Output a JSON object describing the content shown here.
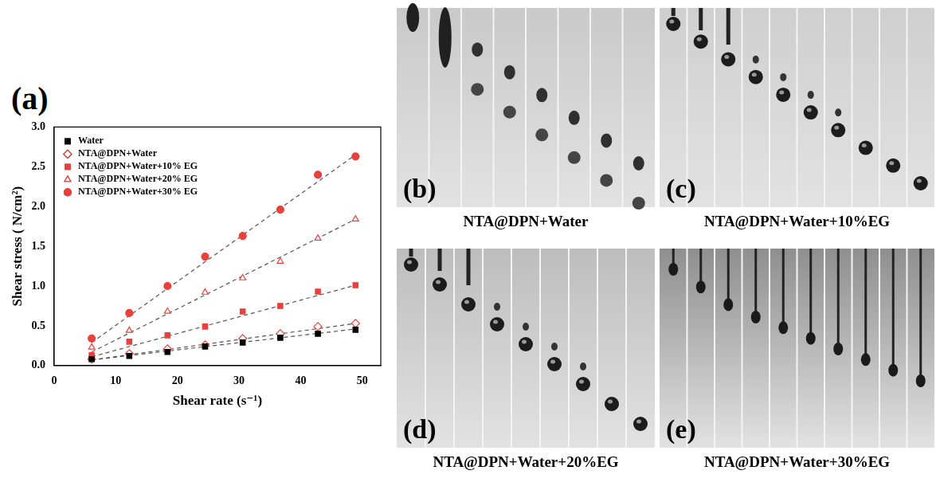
{
  "chart_data": {
    "type": "scatter",
    "panel": "(a)",
    "x_label": "Shear rate (s⁻¹)",
    "y_label": "Shear stress ( N/cm²)",
    "xlim": [
      0,
      53
    ],
    "xticks": [
      0,
      10,
      20,
      30,
      40,
      50
    ],
    "ylim": [
      0,
      3
    ],
    "yticks": [
      {
        "value": 0,
        "label": "0.0"
      },
      {
        "value": 0.5,
        "label": "0.5"
      },
      {
        "value": 1,
        "label": "1.0"
      },
      {
        "value": 1.5,
        "label": "1.5"
      },
      {
        "value": 2,
        "label": "2.0"
      },
      {
        "value": 2.5,
        "label": "2.5"
      },
      {
        "value": 3,
        "label": "3.0"
      }
    ],
    "grid": false,
    "legend": "upper left",
    "x": [
      6.1,
      12.2,
      18.4,
      24.5,
      30.6,
      36.7,
      42.8,
      48.9
    ],
    "series": [
      {
        "name": "Water",
        "color": "#000000",
        "marker": "square",
        "values": [
          0.08,
          0.12,
          0.17,
          0.24,
          0.29,
          0.35,
          0.4,
          0.45
        ],
        "trend": {
          "x": [
            6.1,
            48.9
          ],
          "values": [
            0.07,
            0.46
          ],
          "line_style": "dashed"
        }
      },
      {
        "name": "NTA@DPN+Water",
        "color": "#e8413c",
        "marker": "open diamond",
        "values": [
          0.08,
          0.15,
          0.21,
          0.26,
          0.34,
          0.4,
          0.49,
          0.53
        ],
        "trend": {
          "x": [
            6.1,
            48.9
          ],
          "values": [
            0.07,
            0.53
          ],
          "line_style": "dashed"
        }
      },
      {
        "name": "NTA@DPN+Water+10% EG",
        "color": "#e8413c",
        "marker": "square",
        "values": [
          0.13,
          0.3,
          0.38,
          0.49,
          0.68,
          0.75,
          0.93,
          1.01
        ],
        "trend": {
          "x": [
            6.1,
            48.9
          ],
          "values": [
            0.11,
            1.01
          ],
          "line_style": "dashed"
        }
      },
      {
        "name": "NTA@DPN+Water+20% EG",
        "color": "#e8413c",
        "marker": "open triangle",
        "values": [
          0.23,
          0.44,
          0.68,
          0.92,
          1.1,
          1.31,
          1.6,
          1.84
        ],
        "trend": {
          "x": [
            6.1,
            48.9
          ],
          "values": [
            0.17,
            1.84
          ],
          "line_style": "dashed"
        }
      },
      {
        "name": "NTA@DPN+Water+30% EG",
        "color": "#e8413c",
        "marker": "circle",
        "values": [
          0.34,
          0.66,
          1.0,
          1.37,
          1.63,
          1.96,
          2.4,
          2.63
        ],
        "trend": {
          "x": [
            6.1,
            48.9
          ],
          "values": [
            0.29,
            2.65
          ],
          "line_style": "dashed"
        }
      }
    ]
  },
  "panels": [
    {
      "letter": "(b)",
      "caption": "NTA@DPN+Water"
    },
    {
      "letter": "(c)",
      "caption": "NTA@DPN+Water+10%EG"
    },
    {
      "letter": "(d)",
      "caption": "NTA@DPN+Water+20%EG"
    },
    {
      "letter": "(e)",
      "caption": "NTA@DPN+Water+30%EG"
    }
  ]
}
